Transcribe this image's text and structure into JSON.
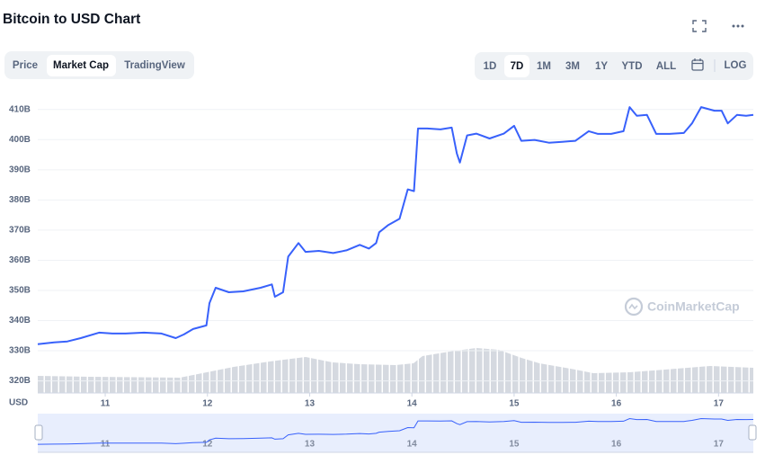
{
  "header": {
    "title": "Bitcoin to USD Chart"
  },
  "tabs": [
    "Price",
    "Market Cap",
    "TradingView"
  ],
  "active_tab": 1,
  "ranges": [
    "1D",
    "7D",
    "1M",
    "3M",
    "1Y",
    "YTD",
    "ALL"
  ],
  "active_range": 1,
  "log_label": "LOG",
  "watermark": "CoinMarketCap",
  "chart_data": {
    "type": "line",
    "unit_label": "USD",
    "color": "#3861fb",
    "grid": true,
    "x": [
      10.34,
      10.5,
      10.63,
      10.76,
      10.94,
      11.07,
      11.2,
      11.38,
      11.55,
      11.69,
      11.77,
      11.86,
      11.99,
      12.02,
      12.08,
      12.21,
      12.35,
      12.52,
      12.63,
      12.66,
      12.74,
      12.79,
      12.89,
      12.96,
      13.09,
      13.23,
      13.36,
      13.49,
      13.58,
      13.65,
      13.68,
      13.77,
      13.88,
      13.96,
      14.02,
      14.06,
      14.15,
      14.28,
      14.39,
      14.44,
      14.47,
      14.54,
      14.63,
      14.76,
      14.9,
      15.0,
      15.07,
      15.2,
      15.34,
      15.47,
      15.6,
      15.73,
      15.82,
      15.95,
      16.07,
      16.13,
      16.2,
      16.3,
      16.39,
      16.52,
      16.66,
      16.74,
      16.83,
      16.96,
      17.03,
      17.09,
      17.18,
      17.27,
      17.34
    ],
    "values": [
      332.2,
      332.8,
      333.1,
      334.2,
      336.0,
      335.7,
      335.7,
      336.0,
      335.7,
      334.2,
      335.4,
      337.2,
      338.4,
      345.8,
      350.9,
      349.4,
      349.7,
      350.9,
      352.0,
      347.9,
      349.4,
      361.2,
      365.7,
      362.8,
      363.1,
      362.4,
      363.3,
      365.1,
      363.9,
      365.7,
      369.3,
      371.7,
      373.8,
      383.5,
      382.9,
      403.7,
      403.7,
      403.4,
      404.0,
      395.4,
      392.4,
      401.4,
      402.0,
      400.4,
      402.0,
      404.6,
      399.6,
      399.9,
      399.0,
      399.3,
      399.6,
      402.8,
      401.9,
      401.9,
      402.8,
      410.8,
      407.9,
      408.2,
      401.9,
      401.9,
      402.2,
      405.4,
      410.8,
      409.6,
      409.6,
      405.4,
      408.2,
      407.9,
      408.2
    ],
    "xlim": [
      10.34,
      17.34
    ],
    "xticks": [
      11,
      12,
      13,
      14,
      15,
      16,
      17
    ],
    "ylim": [
      316,
      415
    ],
    "yticks": [
      {
        "value": 320,
        "label": "320B"
      },
      {
        "value": 330,
        "label": "330B"
      },
      {
        "value": 340,
        "label": "340B"
      },
      {
        "value": 350,
        "label": "350B"
      },
      {
        "value": 360,
        "label": "360B"
      },
      {
        "value": 370,
        "label": "370B"
      },
      {
        "value": 380,
        "label": "380B"
      },
      {
        "value": 390,
        "label": "390B"
      },
      {
        "value": 400,
        "label": "400B"
      },
      {
        "value": 410,
        "label": "410B"
      }
    ]
  }
}
